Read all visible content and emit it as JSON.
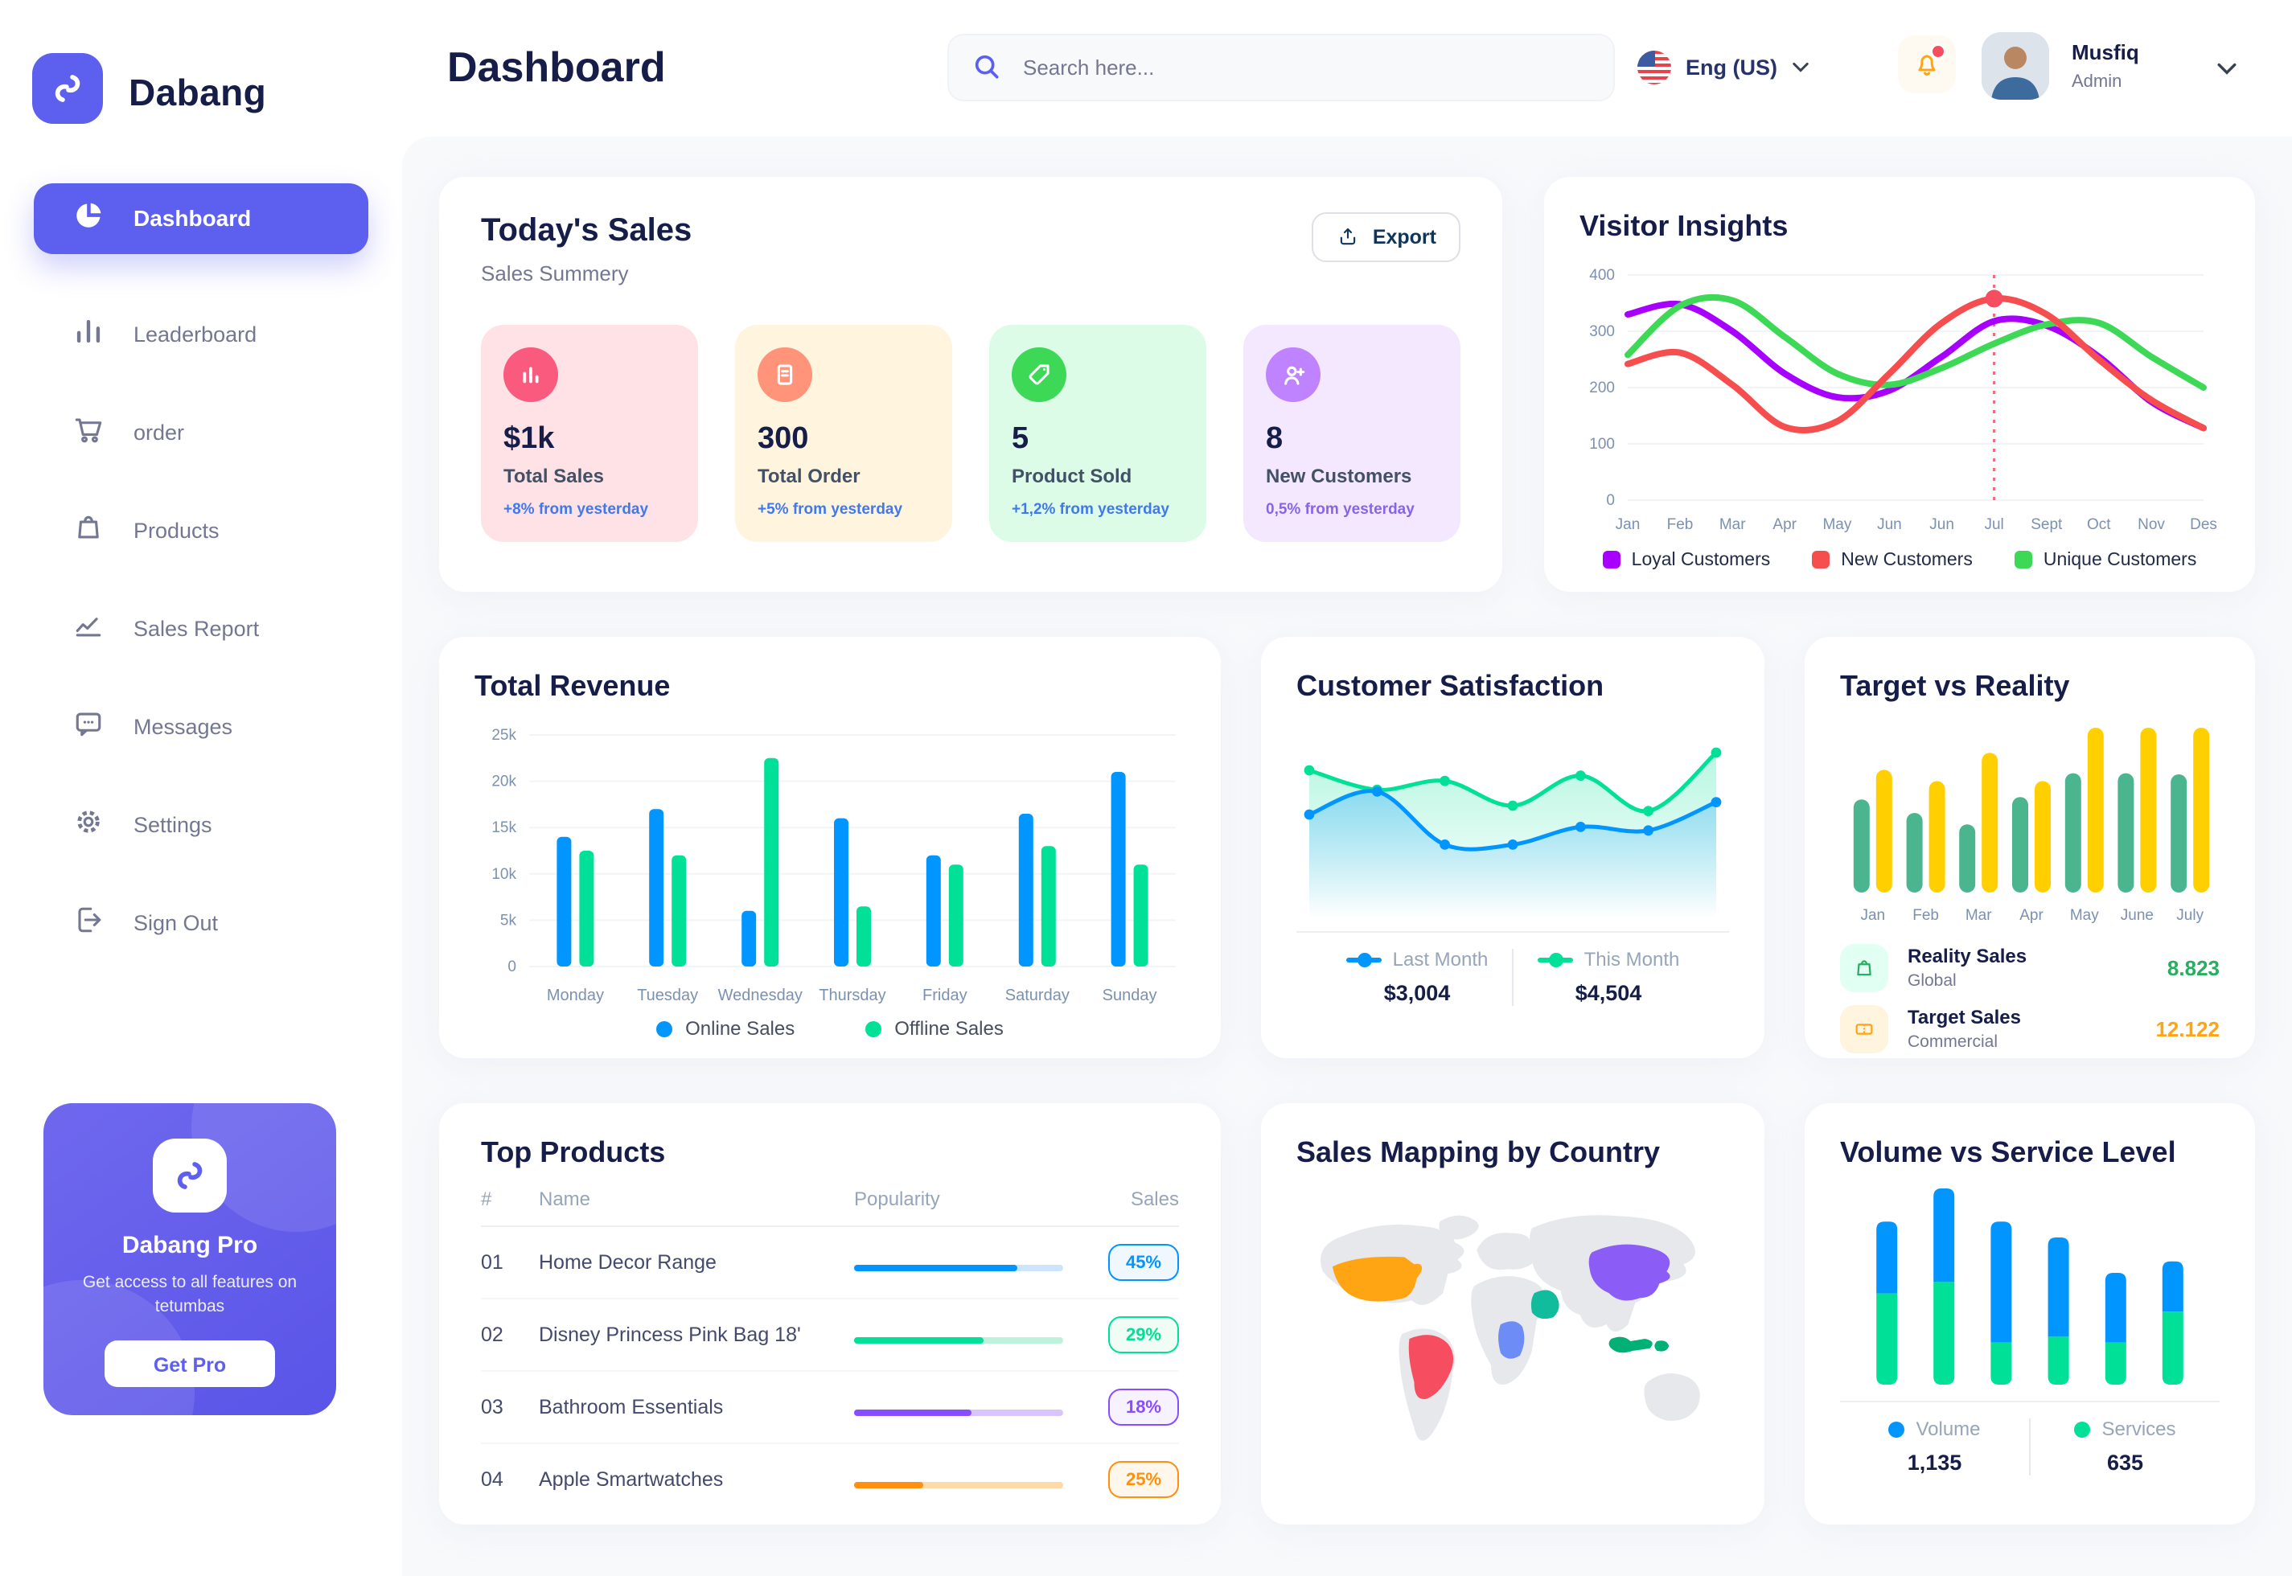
{
  "app": {
    "name": "Dabang"
  },
  "header": {
    "page_title": "Dashboard",
    "search": {
      "placeholder": "Search here...",
      "icon": "search-icon"
    },
    "language": {
      "label": "Eng (US)",
      "icon": "us-flag-icon"
    },
    "notifications": {
      "icon": "bell-icon",
      "has_unread": true
    },
    "user": {
      "name": "Musfiq",
      "role": "Admin"
    }
  },
  "sidebar": {
    "items": [
      {
        "label": "Dashboard",
        "icon": "pie-chart-icon",
        "active": true
      },
      {
        "label": "Leaderboard",
        "icon": "bar-chart-icon",
        "active": false
      },
      {
        "label": "order",
        "icon": "cart-icon",
        "active": false
      },
      {
        "label": "Products",
        "icon": "bag-icon",
        "active": false
      },
      {
        "label": "Sales Report",
        "icon": "line-chart-icon",
        "active": false
      },
      {
        "label": "Messages",
        "icon": "message-icon",
        "active": false
      },
      {
        "label": "Settings",
        "icon": "gear-icon",
        "active": false
      },
      {
        "label": "Sign Out",
        "icon": "sign-out-icon",
        "active": false
      }
    ],
    "pro_card": {
      "title": "Dabang Pro",
      "subtitle": "Get access to all features on tetumbas",
      "button": "Get Pro"
    }
  },
  "today_sales": {
    "title": "Today's Sales",
    "subtitle": "Sales Summery",
    "export_label": "Export",
    "cards": [
      {
        "value": "$1k",
        "label": "Total Sales",
        "delta": "+8% from yesterday",
        "bg": "#FFE2E5",
        "icon_bg": "#FA5A7D",
        "icon": "bar-chart-icon",
        "delta_color": "#4079ED"
      },
      {
        "value": "300",
        "label": "Total Order",
        "delta": "+5% from yesterday",
        "bg": "#FFF4DE",
        "icon_bg": "#FF947A",
        "icon": "receipt-icon",
        "delta_color": "#4079ED"
      },
      {
        "value": "5",
        "label": "Product Sold",
        "delta": "+1,2% from yesterday",
        "bg": "#DCFCE7",
        "icon_bg": "#3CD856",
        "icon": "tag-icon",
        "delta_color": "#4079ED"
      },
      {
        "value": "8",
        "label": "New Customers",
        "delta": "0,5% from yesterday",
        "bg": "#F3E8FF",
        "icon_bg": "#BF83FF",
        "icon": "user-plus-icon",
        "delta_color": "#8964E8"
      }
    ]
  },
  "visitor_insights": {
    "title": "Visitor Insights",
    "chart_data": {
      "type": "line",
      "x": [
        "Jan",
        "Feb",
        "Mar",
        "Apr",
        "May",
        "Jun",
        "Jun",
        "Jul",
        "Sept",
        "Oct",
        "Nov",
        "Des"
      ],
      "yticks": [
        0,
        100,
        200,
        300,
        400
      ],
      "ymax": 400,
      "series": [
        {
          "name": "Loyal Customers",
          "color": "#A700FF",
          "values": [
            330,
            348,
            300,
            225,
            183,
            195,
            255,
            318,
            310,
            255,
            175,
            128
          ]
        },
        {
          "name": "New Customers",
          "color": "#F64E4E",
          "values": [
            242,
            262,
            205,
            130,
            140,
            225,
            315,
            358,
            330,
            250,
            178,
            128
          ]
        },
        {
          "name": "Unique Customers",
          "color": "#3CD856",
          "values": [
            258,
            345,
            355,
            290,
            225,
            205,
            235,
            278,
            312,
            315,
            255,
            200
          ]
        }
      ],
      "marker": {
        "series": 1,
        "index": 7
      }
    }
  },
  "total_revenue": {
    "title": "Total Revenue",
    "chart_data": {
      "type": "bar",
      "categories": [
        "Monday",
        "Tuesday",
        "Wednesday",
        "Thursday",
        "Friday",
        "Saturday",
        "Sunday"
      ],
      "ytick_labels": [
        "0",
        "5k",
        "10k",
        "15k",
        "20k",
        "25k"
      ],
      "ytick_step": 5,
      "ymax": 25,
      "series": [
        {
          "name": "Online Sales",
          "color": "#0095FF",
          "values": [
            14,
            17,
            6,
            16,
            12,
            16.5,
            21
          ]
        },
        {
          "name": "Offline Sales",
          "color": "#00E096",
          "values": [
            12.5,
            12,
            22.5,
            6.5,
            11,
            13,
            11
          ]
        }
      ]
    }
  },
  "customer_satisfaction": {
    "title": "Customer Satisfaction",
    "chart_data": {
      "type": "area",
      "ymax": 100,
      "series": [
        {
          "name": "Last Month",
          "color": "#0095FF",
          "total": "$3,004",
          "values": [
            55,
            68,
            38,
            38,
            48,
            46,
            62
          ]
        },
        {
          "name": "This Month",
          "color": "#00E096",
          "total": "$4,504",
          "values": [
            80,
            69,
            74,
            60,
            77,
            57,
            90
          ]
        }
      ]
    }
  },
  "target_vs_reality": {
    "title": "Target vs Reality",
    "chart_data": {
      "type": "bar",
      "categories": [
        "Jan",
        "Feb",
        "Mar",
        "Apr",
        "May",
        "June",
        "July"
      ],
      "ymax": 15,
      "series": [
        {
          "name": "Reality Sales",
          "color": "#4AB58E",
          "values": [
            8.2,
            7,
            6,
            8.4,
            10.5,
            10.5,
            10.4
          ]
        },
        {
          "name": "Target Sales",
          "color": "#FFCF00",
          "values": [
            10.8,
            9.8,
            12.3,
            9.8,
            14.5,
            14.5,
            14.5
          ]
        }
      ]
    },
    "legend": [
      {
        "label": "Reality Sales",
        "sublabel": "Global",
        "value": "8.823",
        "value_color": "#27AE60",
        "icon": "bag-icon",
        "icon_bg": "#E2FFF3",
        "icon_color": "#27AE60"
      },
      {
        "label": "Target Sales",
        "sublabel": "Commercial",
        "value": "12.122",
        "value_color": "#FFA412",
        "icon": "ticket-icon",
        "icon_bg": "#FFF4DE",
        "icon_color": "#FFA412"
      }
    ]
  },
  "top_products": {
    "title": "Top Products",
    "columns": [
      "#",
      "Name",
      "Popularity",
      "Sales"
    ],
    "rows": [
      {
        "num": "01",
        "name": "Home Decor Range",
        "popularity": 78,
        "sales": "45%",
        "color": "#0095FF",
        "track": "#CDE4FF",
        "badge_bg": "#F0F7FF"
      },
      {
        "num": "02",
        "name": "Disney Princess Pink Bag 18'",
        "popularity": 62,
        "sales": "29%",
        "color": "#00E096",
        "track": "#BDF2DD",
        "badge_bg": "#F0FDF7"
      },
      {
        "num": "03",
        "name": "Bathroom Essentials",
        "popularity": 56,
        "sales": "18%",
        "color": "#884DFF",
        "track": "#D9C4FF",
        "badge_bg": "#F7F2FF"
      },
      {
        "num": "04",
        "name": "Apple Smartwatches",
        "popularity": 33,
        "sales": "25%",
        "color": "#FF8F0D",
        "track": "#FFD9A6",
        "badge_bg": "#FFF7EC"
      }
    ]
  },
  "sales_mapping": {
    "title": "Sales Mapping by Country",
    "land_color": "#E6E8EC",
    "regions": [
      {
        "name": "united-states",
        "color": "#FFA412"
      },
      {
        "name": "brazil",
        "color": "#F64E60"
      },
      {
        "name": "dr-congo",
        "color": "#6E8CF5"
      },
      {
        "name": "saudi-arabia",
        "color": "#10BC9B"
      },
      {
        "name": "china",
        "color": "#8C5CF6"
      },
      {
        "name": "indonesia",
        "color": "#00B074"
      }
    ]
  },
  "volume_service": {
    "title": "Volume vs Service Level",
    "chart_data": {
      "type": "stacked-bar",
      "series": [
        {
          "name": "Volume",
          "color": "#0095FF",
          "total": "1,135",
          "values": [
            315,
            410,
            530,
            435,
            305,
            220
          ]
        },
        {
          "name": "Services",
          "color": "#00E096",
          "total": "635",
          "values": [
            400,
            450,
            185,
            210,
            185,
            320
          ]
        }
      ]
    }
  }
}
